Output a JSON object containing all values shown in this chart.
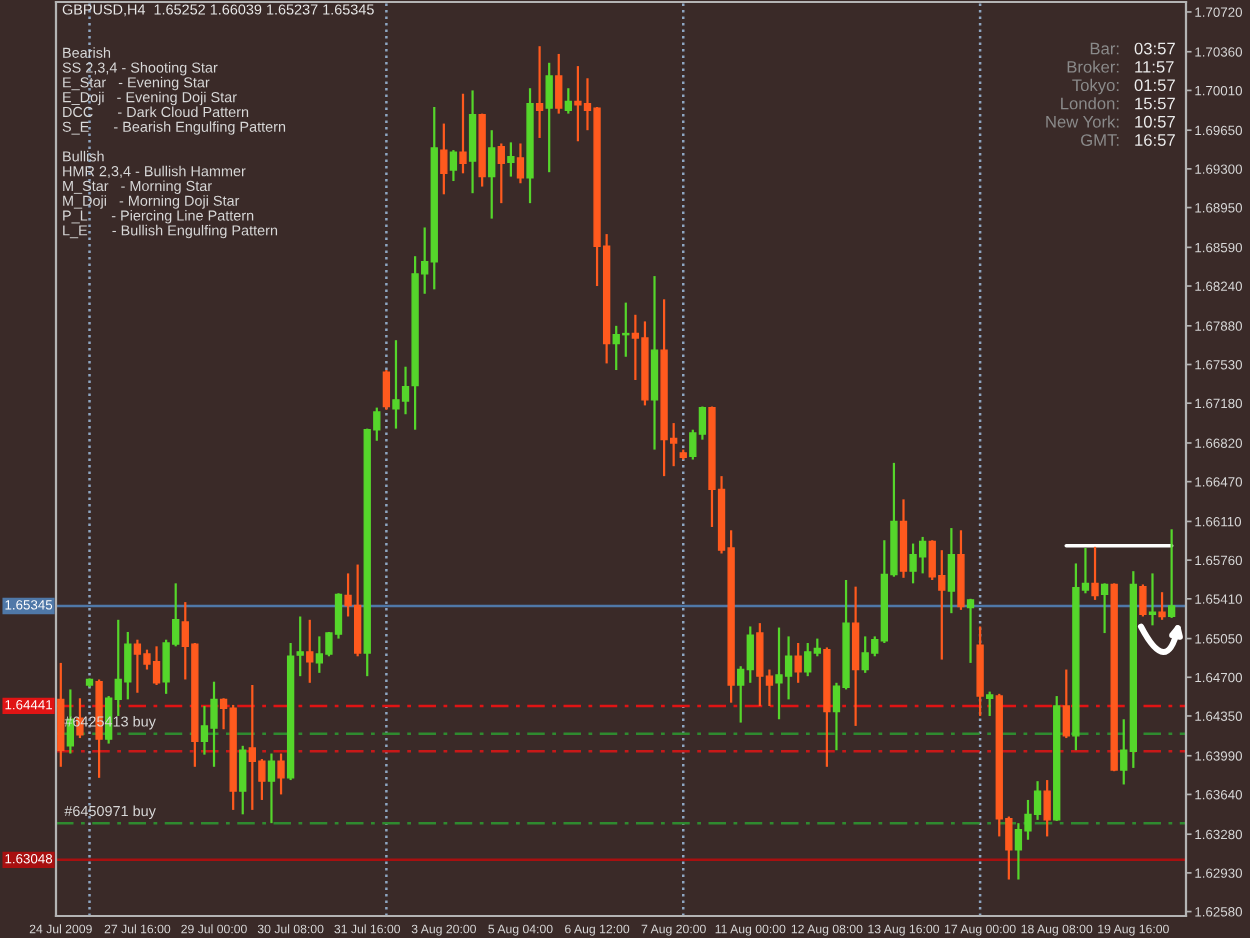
{
  "chart_data": {
    "type": "candlestick",
    "title": "GBPUSD,H4  1.65252 1.66039 1.65237 1.65345",
    "categories": [
      "24 Jul 2009",
      null,
      null,
      null,
      null,
      null,
      null,
      null,
      "27 Jul 16:00",
      null,
      null,
      null,
      null,
      null,
      null,
      null,
      "29 Jul 00:00",
      null,
      null,
      null,
      null,
      null,
      null,
      null,
      "30 Jul 08:00",
      null,
      null,
      null,
      null,
      null,
      null,
      null,
      "31 Jul 16:00",
      null,
      null,
      null,
      null,
      null,
      null,
      null,
      "3 Aug 20:00",
      null,
      null,
      null,
      null,
      null,
      null,
      null,
      "5 Aug 04:00",
      null,
      null,
      null,
      null,
      null,
      null,
      null,
      "6 Aug 12:00",
      null,
      null,
      null,
      null,
      null,
      null,
      null,
      "7 Aug 20:00",
      null,
      null,
      null,
      null,
      null,
      null,
      null,
      "11 Aug 00:00",
      null,
      null,
      null,
      null,
      null,
      null,
      null,
      "12 Aug 08:00",
      null,
      null,
      null,
      null,
      null,
      null,
      null,
      "13 Aug 16:00",
      null,
      null,
      null,
      null,
      null,
      null,
      null,
      "17 Aug 00:00",
      null,
      null,
      null,
      null,
      null,
      null,
      null,
      "18 Aug 08:00",
      null,
      null,
      null,
      null,
      null,
      null,
      null,
      "19 Aug 16:00",
      null,
      null,
      null,
      null
    ],
    "ohlc": [
      [
        1.645,
        1.6483,
        1.6389,
        1.6404
      ],
      [
        1.6408,
        1.6459,
        1.6401,
        1.6432
      ],
      [
        1.6433,
        1.6451,
        1.6415,
        1.6418
      ],
      [
        1.6463,
        1.6469,
        1.6461,
        1.6468
      ],
      [
        1.6466,
        1.6468,
        1.6379,
        1.6414
      ],
      [
        1.6414,
        1.6453,
        1.641,
        1.6451
      ],
      [
        1.645,
        1.6522,
        1.6435,
        1.6468
      ],
      [
        1.6466,
        1.6511,
        1.645,
        1.65
      ],
      [
        1.65,
        1.6504,
        1.6456,
        1.6491
      ],
      [
        1.6491,
        1.6495,
        1.6477,
        1.6482
      ],
      [
        1.6484,
        1.6498,
        1.6463,
        1.6465
      ],
      [
        1.6466,
        1.6504,
        1.6455,
        1.6501
      ],
      [
        1.65,
        1.6555,
        1.6498,
        1.6522
      ],
      [
        1.652,
        1.6538,
        1.6468,
        1.6498
      ],
      [
        1.65,
        1.6501,
        1.6389,
        1.6412
      ],
      [
        1.6412,
        1.6444,
        1.64,
        1.6426
      ],
      [
        1.6424,
        1.6466,
        1.6389,
        1.645
      ],
      [
        1.645,
        1.6451,
        1.6423,
        1.6442
      ],
      [
        1.6442,
        1.6445,
        1.635,
        1.6367
      ],
      [
        1.6367,
        1.6408,
        1.6346,
        1.6404
      ],
      [
        1.6406,
        1.6463,
        1.635,
        1.6394
      ],
      [
        1.6394,
        1.6396,
        1.6359,
        1.6376
      ],
      [
        1.6376,
        1.6401,
        1.6338,
        1.6394
      ],
      [
        1.6394,
        1.6401,
        1.6364,
        1.6379
      ],
      [
        1.6379,
        1.6501,
        1.6377,
        1.6489
      ],
      [
        1.649,
        1.6525,
        1.6471,
        1.6493
      ],
      [
        1.6493,
        1.6522,
        1.6465,
        1.6484
      ],
      [
        1.6483,
        1.6507,
        1.6474,
        1.6491
      ],
      [
        1.6491,
        1.6511,
        1.6489,
        1.651
      ],
      [
        1.6509,
        1.6546,
        1.6505,
        1.6545
      ],
      [
        1.6544,
        1.6564,
        1.6525,
        1.6535
      ],
      [
        1.6535,
        1.6572,
        1.6489,
        1.6492
      ],
      [
        1.6492,
        1.6695,
        1.6471,
        1.6694
      ],
      [
        1.6694,
        1.6714,
        1.6684,
        1.671
      ],
      [
        1.6746,
        1.6748,
        1.6712,
        1.6715
      ],
      [
        1.6713,
        1.6775,
        1.6695,
        1.6721
      ],
      [
        1.672,
        1.6751,
        1.6708,
        1.6733
      ],
      [
        1.6734,
        1.6851,
        1.6694,
        1.6835
      ],
      [
        1.6835,
        1.6877,
        1.6817,
        1.6846
      ],
      [
        1.6846,
        1.6986,
        1.6821,
        1.6949
      ],
      [
        1.6947,
        1.6971,
        1.6907,
        1.6926
      ],
      [
        1.6929,
        1.6947,
        1.6919,
        1.6945
      ],
      [
        1.6945,
        1.6998,
        1.6926,
        1.6935
      ],
      [
        1.6937,
        1.7001,
        1.6908,
        1.6979
      ],
      [
        1.6979,
        1.698,
        1.6914,
        1.6923
      ],
      [
        1.6923,
        1.6965,
        1.6885,
        1.6949
      ],
      [
        1.695,
        1.6953,
        1.6899,
        1.6935
      ],
      [
        1.6936,
        1.6954,
        1.6923,
        1.6941
      ],
      [
        1.694,
        1.6953,
        1.6917,
        1.6922
      ],
      [
        1.6922,
        1.7003,
        1.6899,
        1.6989
      ],
      [
        1.6989,
        1.7041,
        1.6958,
        1.6983
      ],
      [
        1.6985,
        1.7026,
        1.6927,
        1.7014
      ],
      [
        1.7014,
        1.7034,
        1.698,
        1.6985
      ],
      [
        1.6983,
        1.7003,
        1.698,
        1.6991
      ],
      [
        1.6991,
        1.7023,
        1.6955,
        1.6988
      ],
      [
        1.6989,
        1.7012,
        1.6965,
        1.6983
      ],
      [
        1.6985,
        1.6986,
        1.6824,
        1.686
      ],
      [
        1.686,
        1.6871,
        1.6754,
        1.6772
      ],
      [
        1.6772,
        1.6788,
        1.6748,
        1.678
      ],
      [
        1.678,
        1.6809,
        1.676,
        1.6781
      ],
      [
        1.6781,
        1.6798,
        1.6739,
        1.6777
      ],
      [
        1.6777,
        1.6792,
        1.6716,
        1.6721
      ],
      [
        1.6721,
        1.6833,
        1.6676,
        1.6766
      ],
      [
        1.6766,
        1.6812,
        1.6652,
        1.6685
      ],
      [
        1.6686,
        1.67,
        1.6661,
        1.6682
      ],
      [
        1.6673,
        1.6676,
        1.6667,
        1.6669
      ],
      [
        1.667,
        1.6694,
        1.6667,
        1.6691
      ],
      [
        1.669,
        1.6715,
        1.6685,
        1.6714
      ],
      [
        1.6714,
        1.6715,
        1.6606,
        1.664
      ],
      [
        1.664,
        1.6652,
        1.6582,
        1.6585
      ],
      [
        1.6587,
        1.6603,
        1.6447,
        1.6463
      ],
      [
        1.6463,
        1.648,
        1.6429,
        1.6477
      ],
      [
        1.6477,
        1.6516,
        1.6465,
        1.6508
      ],
      [
        1.651,
        1.6519,
        1.6444,
        1.6471
      ],
      [
        1.6471,
        1.6477,
        1.6444,
        1.6463
      ],
      [
        1.6465,
        1.6515,
        1.6432,
        1.6472
      ],
      [
        1.6471,
        1.6507,
        1.645,
        1.6489
      ],
      [
        1.6489,
        1.6501,
        1.6465,
        1.6475
      ],
      [
        1.6475,
        1.6501,
        1.6471,
        1.6493
      ],
      [
        1.6492,
        1.6505,
        1.6489,
        1.6496
      ],
      [
        1.6495,
        1.6497,
        1.6389,
        1.6439
      ],
      [
        1.6439,
        1.6465,
        1.6404,
        1.6462
      ],
      [
        1.6461,
        1.6558,
        1.6459,
        1.6519
      ],
      [
        1.6519,
        1.6552,
        1.6426,
        1.6477
      ],
      [
        1.6477,
        1.6507,
        1.6474,
        1.6492
      ],
      [
        1.6492,
        1.6507,
        1.6489,
        1.6504
      ],
      [
        1.6503,
        1.6594,
        1.6501,
        1.6563
      ],
      [
        1.6563,
        1.6664,
        1.6561,
        1.6611
      ],
      [
        1.6611,
        1.6631,
        1.656,
        1.6566
      ],
      [
        1.6566,
        1.6591,
        1.6555,
        1.6581
      ],
      [
        1.6579,
        1.6597,
        1.6564,
        1.6593
      ],
      [
        1.6593,
        1.6594,
        1.6558,
        1.6561
      ],
      [
        1.6562,
        1.6585,
        1.6486,
        1.6549
      ],
      [
        1.6548,
        1.6605,
        1.6528,
        1.6581
      ],
      [
        1.6581,
        1.6603,
        1.6531,
        1.6534
      ],
      [
        1.6533,
        1.6541,
        1.6483,
        1.654
      ],
      [
        1.6499,
        1.6516,
        1.6435,
        1.6453
      ],
      [
        1.6451,
        1.6457,
        1.6435,
        1.6454
      ],
      [
        1.6453,
        1.6455,
        1.6326,
        1.6342
      ],
      [
        1.6342,
        1.6344,
        1.6287,
        1.6314
      ],
      [
        1.6314,
        1.6338,
        1.6287,
        1.6332
      ],
      [
        1.6331,
        1.6359,
        1.6323,
        1.6346
      ],
      [
        1.6346,
        1.6376,
        1.6341,
        1.6367
      ],
      [
        1.6367,
        1.6377,
        1.6326,
        1.6341
      ],
      [
        1.6341,
        1.6453,
        1.634,
        1.6444
      ],
      [
        1.6444,
        1.6477,
        1.6415,
        1.6417
      ],
      [
        1.6417,
        1.6573,
        1.6404,
        1.6551
      ],
      [
        1.6549,
        1.6587,
        1.6546,
        1.6555
      ],
      [
        1.6555,
        1.6588,
        1.654,
        1.6544
      ],
      [
        1.6545,
        1.6555,
        1.651,
        1.6554
      ],
      [
        1.6554,
        1.6555,
        1.6385,
        1.6386
      ],
      [
        1.6386,
        1.6432,
        1.6373,
        1.6404
      ],
      [
        1.6403,
        1.6566,
        1.6388,
        1.6554
      ],
      [
        1.6552,
        1.6554,
        1.6525,
        1.6527
      ],
      [
        1.6527,
        1.6564,
        1.6517,
        1.6529
      ],
      [
        1.6529,
        1.6547,
        1.6522,
        1.6525
      ],
      [
        1.65252,
        1.66039,
        1.65237,
        1.65345
      ]
    ],
    "colors": [
      "#ff5a1e",
      "#55d62b",
      "#ff5a1e",
      "#55d62b",
      "#ff5a1e",
      "#55d62b",
      "#55d62b",
      "#55d62b",
      "#ff5a1e",
      "#ff5a1e",
      "#ff5a1e",
      "#55d62b",
      "#55d62b",
      "#ff5a1e",
      "#ff5a1e",
      "#55d62b",
      "#55d62b",
      "#ff5a1e",
      "#ff5a1e",
      "#55d62b",
      "#ff5a1e",
      "#ff5a1e",
      "#55d62b",
      "#ff5a1e",
      "#55d62b",
      "#55d62b",
      "#ff5a1e",
      "#55d62b",
      "#55d62b",
      "#55d62b",
      "#ff5a1e",
      "#ff5a1e",
      "#55d62b",
      "#55d62b",
      "#ff5a1e",
      "#55d62b",
      "#55d62b",
      "#55d62b",
      "#55d62b",
      "#55d62b",
      "#ff5a1e",
      "#55d62b",
      "#ff5a1e",
      "#55d62b",
      "#ff5a1e",
      "#55d62b",
      "#ff5a1e",
      "#55d62b",
      "#ff5a1e",
      "#55d62b",
      "#ff5a1e",
      "#55d62b",
      "#ff5a1e",
      "#55d62b",
      "#ff5a1e",
      "#ff5a1e",
      "#ff5a1e",
      "#ff5a1e",
      "#55d62b",
      "#55d62b",
      "#ff5a1e",
      "#ff5a1e",
      "#55d62b",
      "#ff5a1e",
      "#ff5a1e",
      "#ff5a1e",
      "#55d62b",
      "#55d62b",
      "#ff5a1e",
      "#ff5a1e",
      "#ff5a1e",
      "#55d62b",
      "#55d62b",
      "#ff5a1e",
      "#ff5a1e",
      "#55d62b",
      "#55d62b",
      "#ff5a1e",
      "#55d62b",
      "#55d62b",
      "#ff5a1e",
      "#55d62b",
      "#55d62b",
      "#ff5a1e",
      "#55d62b",
      "#55d62b",
      "#55d62b",
      "#55d62b",
      "#ff5a1e",
      "#55d62b",
      "#55d62b",
      "#ff5a1e",
      "#ff5a1e",
      "#55d62b",
      "#ff5a1e",
      "#55d62b",
      "#ff5a1e",
      "#55d62b",
      "#ff5a1e",
      "#ff5a1e",
      "#55d62b",
      "#55d62b",
      "#55d62b",
      "#ff5a1e",
      "#55d62b",
      "#ff5a1e",
      "#55d62b",
      "#55d62b",
      "#ff5a1e",
      "#55d62b",
      "#ff5a1e",
      "#55d62b",
      "#55d62b",
      "#ff5a1e",
      "#55d62b",
      "#ff5a1e",
      "#55d62b"
    ],
    "series": [
      {
        "type": "line",
        "color": "#ffffff",
        "values": [
          null,
          null,
          null,
          null,
          null,
          null,
          null,
          null,
          null,
          null,
          null,
          null,
          null,
          null,
          null,
          null,
          null,
          null,
          null,
          null,
          null,
          null,
          null,
          null,
          null,
          null,
          null,
          null,
          null,
          null,
          null,
          null,
          null,
          null,
          null,
          null,
          null,
          null,
          null,
          null,
          null,
          null,
          null,
          null,
          null,
          null,
          null,
          null,
          null,
          null,
          null,
          null,
          null,
          null,
          null,
          null,
          null,
          null,
          null,
          null,
          null,
          null,
          null,
          null,
          null,
          null,
          null,
          null,
          null,
          null,
          null,
          null,
          null,
          null,
          null,
          null,
          null,
          null,
          null,
          null,
          null,
          null,
          null,
          null,
          null,
          null,
          null,
          null,
          null,
          null,
          null,
          null,
          null,
          null,
          null,
          null,
          null,
          null,
          null,
          null,
          null,
          null,
          null,
          null,
          null,
          1.6589,
          1.6589,
          1.6589,
          1.6589,
          1.6589,
          1.6589,
          1.6589,
          1.6589,
          1.6589,
          1.6589,
          1.6589,
          1.6589
        ]
      }
    ],
    "ylim": [
      1.6254,
      1.7081
    ],
    "yticks": [
      {
        "value": 1.7072,
        "label": "1.70720"
      },
      {
        "value": 1.7036,
        "label": "1.70360"
      },
      {
        "value": 1.7001,
        "label": "1.70010"
      },
      {
        "value": 1.6965,
        "label": "1.69650"
      },
      {
        "value": 1.693,
        "label": "1.69300"
      },
      {
        "value": 1.6895,
        "label": "1.68950"
      },
      {
        "value": 1.6859,
        "label": "1.68590"
      },
      {
        "value": 1.6824,
        "label": "1.68240"
      },
      {
        "value": 1.6788,
        "label": "1.67880"
      },
      {
        "value": 1.6753,
        "label": "1.67530"
      },
      {
        "value": 1.6718,
        "label": "1.67180"
      },
      {
        "value": 1.6682,
        "label": "1.66820"
      },
      {
        "value": 1.6647,
        "label": "1.66470"
      },
      {
        "value": 1.6611,
        "label": "1.66110"
      },
      {
        "value": 1.6576,
        "label": "1.65760"
      },
      {
        "value": 1.6541,
        "label": "1.65410"
      },
      {
        "value": 1.6505,
        "label": "1.65050"
      },
      {
        "value": 1.647,
        "label": "1.64700"
      },
      {
        "value": 1.6435,
        "label": "1.64350"
      },
      {
        "value": 1.6399,
        "label": "1.63990"
      },
      {
        "value": 1.6364,
        "label": "1.63640"
      },
      {
        "value": 1.6328,
        "label": "1.63280"
      },
      {
        "value": 1.6293,
        "label": "1.62930"
      },
      {
        "value": 1.6258,
        "label": "1.62580"
      }
    ],
    "ref_lines": [
      {
        "axis": "y",
        "value": 1.65345,
        "label": "1.65345",
        "color": "#4f78a8",
        "line_style": "solid"
      },
      {
        "axis": "y",
        "value": 1.64441,
        "label": "1.64441",
        "color": "#e01414",
        "line_style": "dashed"
      },
      {
        "axis": "y",
        "value": 1.6419,
        "color": "#2f8a2f",
        "line_style": "dashed"
      },
      {
        "axis": "y",
        "value": 1.6403,
        "color": "#c81818",
        "line_style": "dashed"
      },
      {
        "axis": "y",
        "value": 1.6338,
        "color": "#2f8a2f",
        "line_style": "dashed"
      },
      {
        "axis": "y",
        "value": 1.63048,
        "label": "1.63048",
        "color": "#a81010",
        "line_style": "solid"
      }
    ],
    "annotations": [
      "Bearish",
      "SS 2,3,4 - Shooting Star",
      "E_Star   - Evening Star",
      "E_Doji   - Evening Doji Star",
      "DCC      - Dark Cloud Pattern",
      "S_E      - Bearish Engulfing Pattern",
      "Bullish",
      "HMR 2,3,4 - Bullish Hammer",
      "M_Star   - Morning Star",
      "M_Doji   - Morning Doji Star",
      "P_L      - Piercing Line Pattern",
      "L_E      - Bullish Engulfing Pattern",
      "Bar:",
      "03:57",
      "Broker:",
      "11:57",
      "Tokyo:",
      "01:57",
      "London:",
      "15:57",
      "New York:",
      "10:57",
      "GMT:",
      "16:57",
      {
        "text": "#6425413 buy",
        "y": 1.6419
      },
      {
        "text": "#6450971 buy",
        "y": 1.6338
      }
    ]
  }
}
